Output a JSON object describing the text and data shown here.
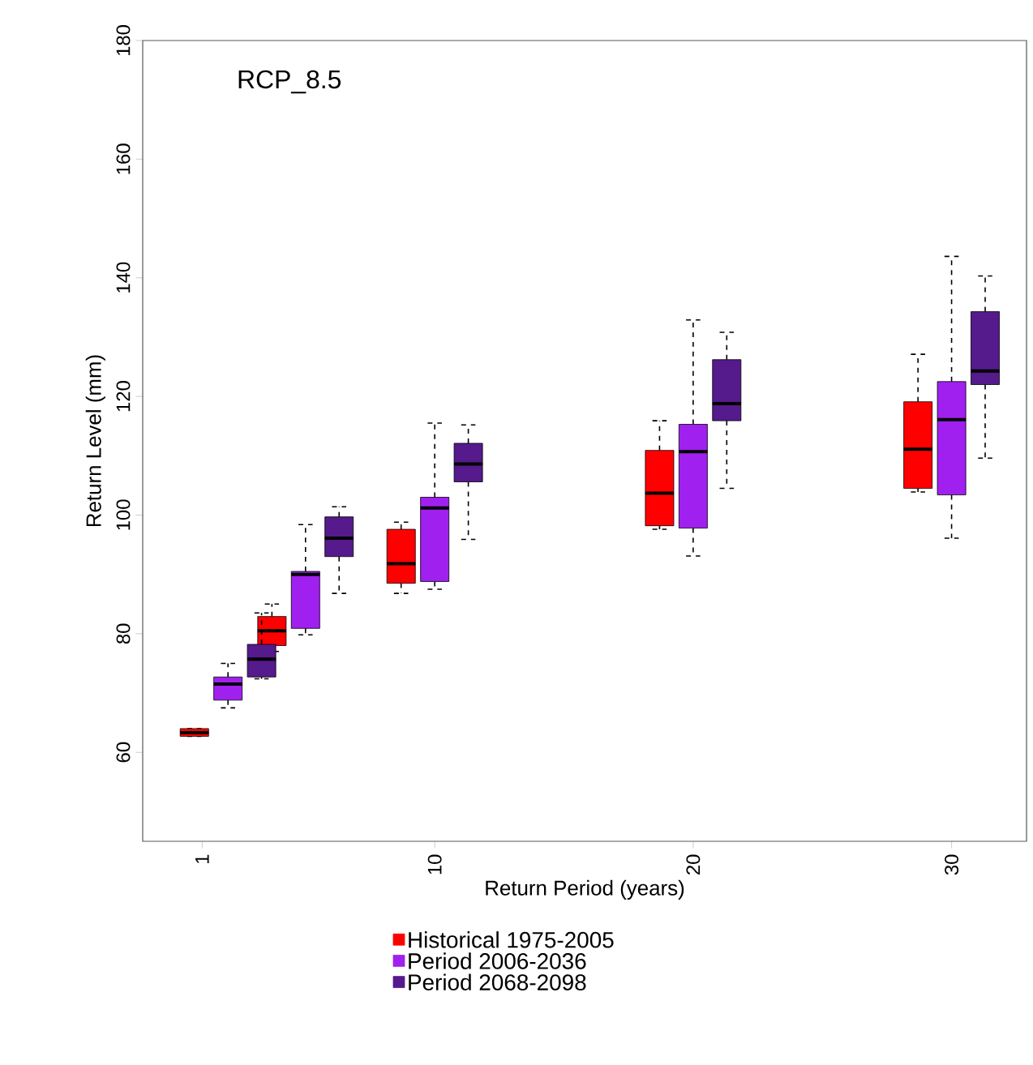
{
  "chart_data": {
    "type": "box",
    "title": "RCP_8.5",
    "xlabel": "Return Period (years)",
    "ylabel": "Return Level (mm)",
    "xlim": [
      -1.3,
      32.9
    ],
    "ylim": [
      45,
      180
    ],
    "xticks": [
      1,
      10,
      20,
      30
    ],
    "yticks": [
      60,
      80,
      100,
      120,
      140,
      160,
      180
    ],
    "legend": "bottom",
    "grid": false,
    "series": [
      {
        "name": "Historical 1975-2005",
        "color": "#ff0000",
        "x": [
          0.7,
          3.7,
          8.7,
          18.7,
          28.7
        ],
        "boxes": [
          {
            "low": 62.7,
            "q1": 62.7,
            "median": 63.3,
            "q3": 64.0,
            "high": 64.0
          },
          {
            "low": 77.0,
            "q1": 78.0,
            "median": 80.5,
            "q3": 82.9,
            "high": 85.0
          },
          {
            "low": 86.8,
            "q1": 88.5,
            "median": 91.8,
            "q3": 97.6,
            "high": 98.8
          },
          {
            "low": 97.6,
            "q1": 98.2,
            "median": 103.7,
            "q3": 110.9,
            "high": 115.9
          },
          {
            "low": 103.9,
            "q1": 104.5,
            "median": 111.1,
            "q3": 119.1,
            "high": 127.1
          }
        ]
      },
      {
        "name": "Period 2006-2036",
        "color": "#a020f0",
        "x": [
          2,
          5,
          10,
          20,
          30
        ],
        "boxes": [
          {
            "low": 67.5,
            "q1": 68.8,
            "median": 71.5,
            "q3": 72.7,
            "high": 75.0
          },
          {
            "low": 79.8,
            "q1": 80.9,
            "median": 90.0,
            "q3": 90.5,
            "high": 98.4
          },
          {
            "low": 87.5,
            "q1": 88.8,
            "median": 101.2,
            "q3": 103.0,
            "high": 115.5
          },
          {
            "low": 93.1,
            "q1": 97.8,
            "median": 110.7,
            "q3": 115.3,
            "high": 132.9
          },
          {
            "low": 96.1,
            "q1": 103.4,
            "median": 116.1,
            "q3": 122.5,
            "high": 143.6
          }
        ]
      },
      {
        "name": "Period 2068-2098",
        "color": "#551a8b",
        "x": [
          3.3,
          6.3,
          11.3,
          21.3,
          31.3
        ],
        "boxes": [
          {
            "low": 72.4,
            "q1": 72.7,
            "median": 75.7,
            "q3": 78.2,
            "high": 83.5
          },
          {
            "low": 86.8,
            "q1": 93.0,
            "median": 96.1,
            "q3": 99.7,
            "high": 101.4
          },
          {
            "low": 95.9,
            "q1": 105.6,
            "median": 108.6,
            "q3": 112.1,
            "high": 115.2
          },
          {
            "low": 104.5,
            "q1": 115.9,
            "median": 118.8,
            "q3": 126.2,
            "high": 130.8
          },
          {
            "low": 109.6,
            "q1": 122.0,
            "median": 124.3,
            "q3": 134.3,
            "high": 140.3
          }
        ]
      }
    ]
  }
}
